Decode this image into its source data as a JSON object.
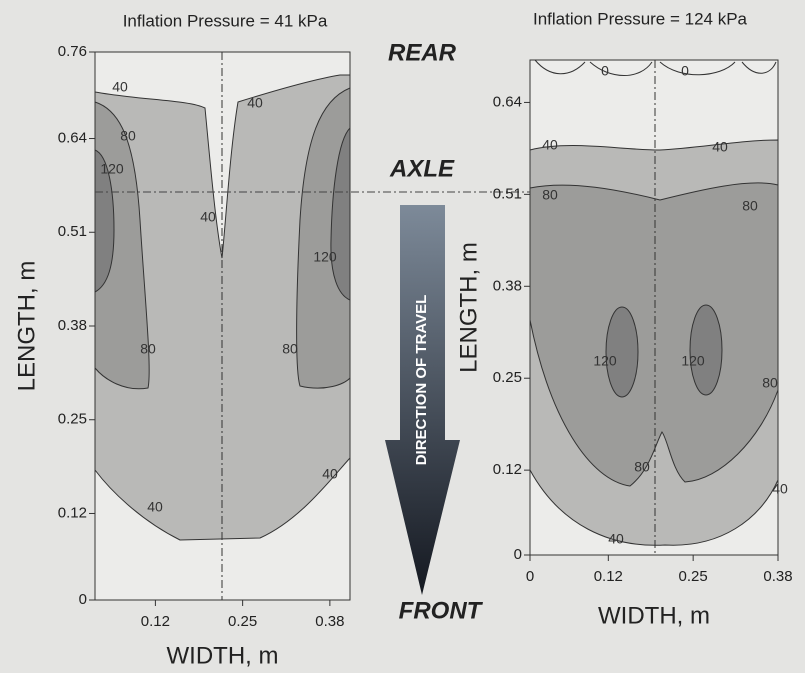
{
  "chart_data": [
    {
      "type": "contour",
      "title": "Inflation Pressure = 41 kPa",
      "xlabel": "WIDTH, m",
      "ylabel": "LENGTH, m",
      "xlim": [
        0.03,
        0.41
      ],
      "ylim": [
        0,
        0.76
      ],
      "xticks": [
        0.12,
        0.25,
        0.38
      ],
      "yticks": [
        0,
        0.12,
        0.25,
        0.38,
        0.51,
        0.64,
        0.76
      ],
      "contour_labels": [
        40,
        40,
        80,
        120,
        40,
        120,
        80,
        80,
        40,
        40
      ]
    },
    {
      "type": "contour",
      "title": "Inflation Pressure = 124 kPa",
      "xlabel": "WIDTH, m",
      "ylabel": "LENGTH, m",
      "xlim": [
        0,
        0.38
      ],
      "ylim": [
        0,
        0.7
      ],
      "xticks": [
        0,
        0.12,
        0.25,
        0.38
      ],
      "yticks": [
        0,
        0.12,
        0.25,
        0.38,
        0.51,
        0.64
      ],
      "contour_labels": [
        0,
        0,
        40,
        40,
        80,
        80,
        120,
        120,
        80,
        80,
        40,
        40
      ]
    }
  ],
  "annotations": {
    "rear": "REAR",
    "axle": "AXLE",
    "front": "FRONT",
    "direction": "DIRECTION OF TRAVEL"
  }
}
